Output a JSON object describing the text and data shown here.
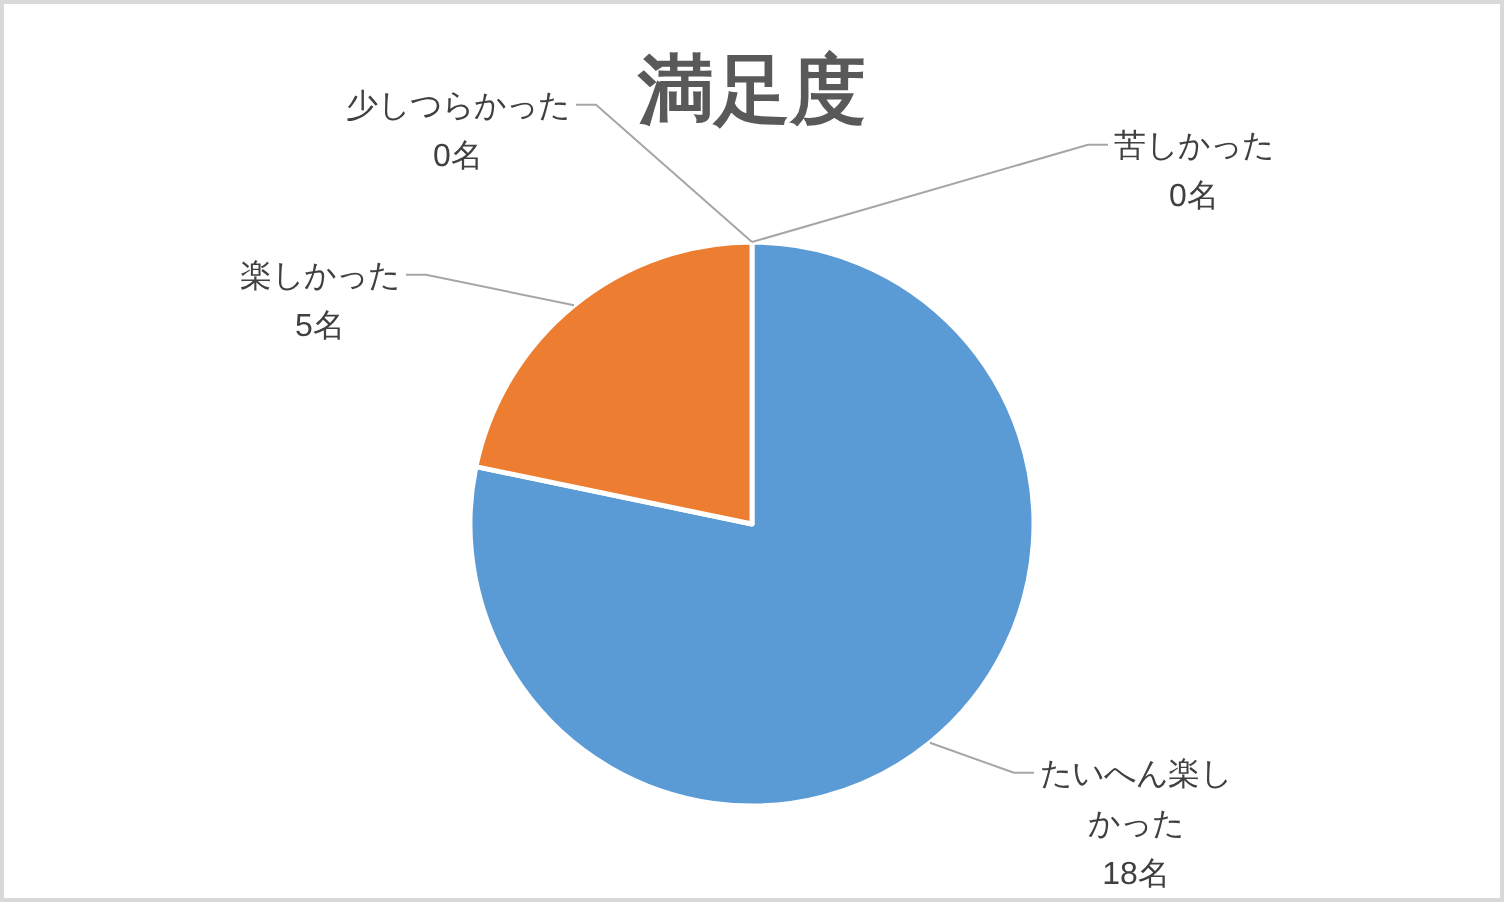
{
  "chart_data": {
    "type": "pie",
    "title": "満足度",
    "categories": [
      "たいへん楽しかった",
      "楽しかった",
      "少しつらかった",
      "苦しかった"
    ],
    "values": [
      18,
      5,
      0,
      0
    ],
    "colors": [
      "#5b9bd5",
      "#ed7d31",
      null,
      null
    ],
    "value_labels": [
      "18名",
      "5名",
      "0名",
      "0名"
    ]
  }
}
